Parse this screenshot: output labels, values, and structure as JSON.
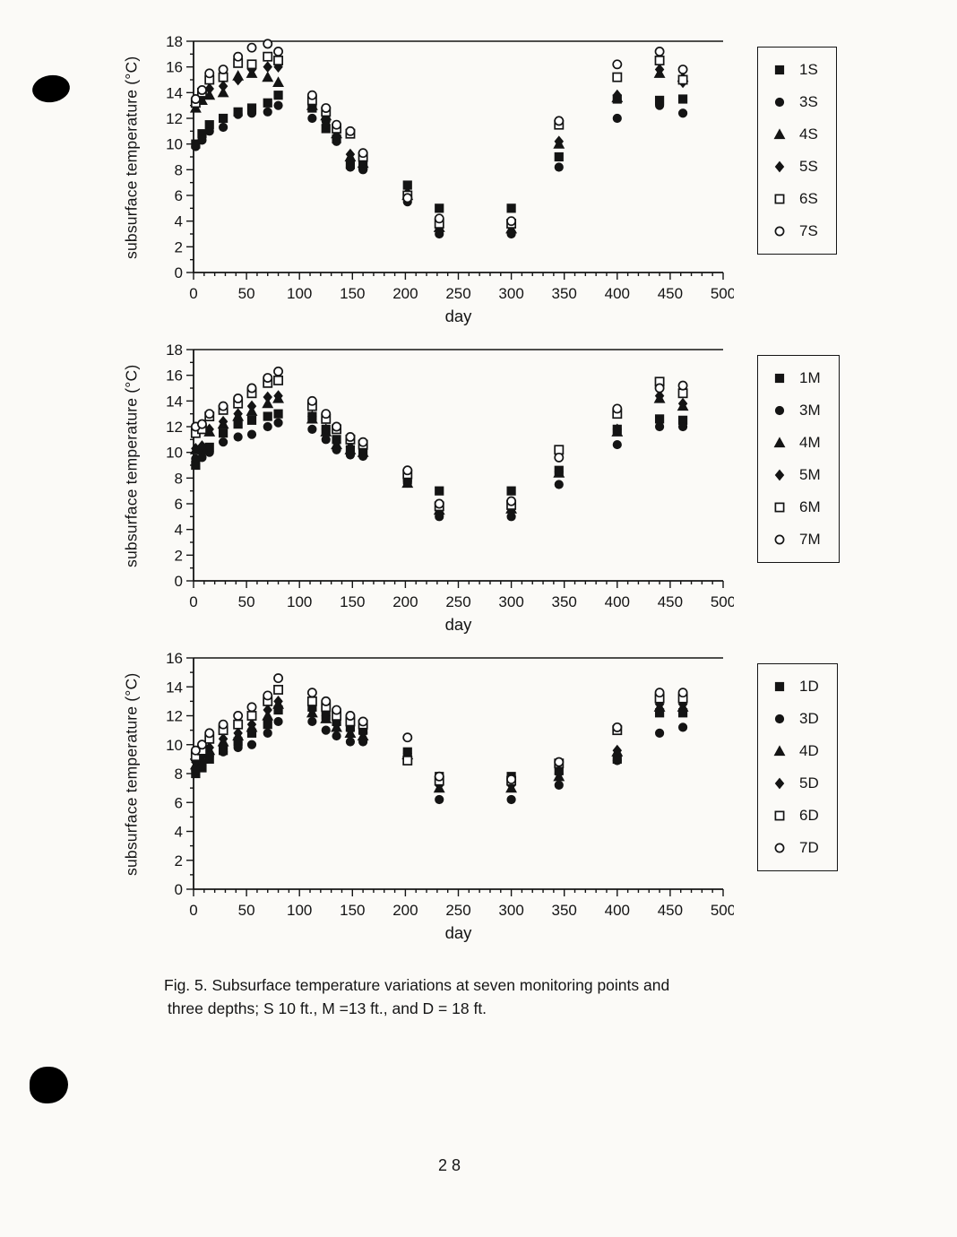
{
  "page_number": "28",
  "caption": {
    "line1": "Fig. 5.  Subsurface temperature variations at seven monitoring points and",
    "line2": "three depths; S 10 ft., M =13 ft., and D = 18 ft."
  },
  "colors": {
    "ink": "#141414",
    "paper": "#fbfaf7"
  },
  "chart_data": [
    {
      "type": "scatter",
      "xlabel": "day",
      "ylabel": "subsurface temperature (°C)",
      "xlim": [
        0,
        500
      ],
      "ylim": [
        0,
        18
      ],
      "xticks": [
        0,
        50,
        100,
        150,
        200,
        250,
        300,
        350,
        400,
        450,
        500
      ],
      "yticks": [
        0,
        2,
        4,
        6,
        8,
        10,
        12,
        14,
        16,
        18
      ],
      "x_minor_step": 10,
      "y_minor_step": 1,
      "legend_position": "right",
      "grid": false,
      "x": [
        2,
        8,
        15,
        28,
        42,
        55,
        70,
        80,
        112,
        125,
        135,
        148,
        160,
        202,
        232,
        300,
        345,
        400,
        440,
        462
      ],
      "series": [
        {
          "name": "1S",
          "marker": "filled-square",
          "values": [
            10.0,
            10.8,
            11.5,
            12.0,
            12.5,
            12.8,
            13.2,
            13.8,
            12.8,
            11.2,
            10.4,
            8.4,
            8.3,
            6.8,
            5.0,
            5.0,
            9.0,
            13.5,
            13.4,
            13.5
          ]
        },
        {
          "name": "3S",
          "marker": "filled-circle",
          "values": [
            9.8,
            10.3,
            11.0,
            11.3,
            12.3,
            12.4,
            12.5,
            13.0,
            12.0,
            11.8,
            10.2,
            8.2,
            8.0,
            5.5,
            3.0,
            3.0,
            8.2,
            12.0,
            13.0,
            12.4
          ]
        },
        {
          "name": "4S",
          "marker": "filled-triangle",
          "values": [
            12.8,
            13.4,
            13.8,
            14.0,
            15.3,
            15.5,
            15.2,
            14.8,
            13.0,
            12.2,
            10.8,
            9.0,
            8.5,
            6.0,
            3.5,
            3.4,
            10.0,
            13.6,
            15.5,
            15.2
          ]
        },
        {
          "name": "5S",
          "marker": "filled-diamond",
          "values": [
            13.0,
            13.6,
            14.3,
            14.5,
            15.0,
            15.8,
            16.0,
            16.0,
            13.2,
            11.5,
            10.6,
            9.2,
            8.6,
            6.2,
            3.6,
            3.6,
            10.2,
            13.8,
            15.8,
            14.8
          ]
        },
        {
          "name": "6S",
          "marker": "open-square",
          "values": [
            13.2,
            14.0,
            15.0,
            15.2,
            16.3,
            16.2,
            16.8,
            16.5,
            13.4,
            12.5,
            11.2,
            10.8,
            9.0,
            6.0,
            3.8,
            3.8,
            11.5,
            15.2,
            16.5,
            15.0
          ]
        },
        {
          "name": "7S",
          "marker": "open-circle",
          "values": [
            13.5,
            14.2,
            15.5,
            15.8,
            16.8,
            17.5,
            17.8,
            17.2,
            13.8,
            12.8,
            11.5,
            11.0,
            9.3,
            5.8,
            4.2,
            4.0,
            11.8,
            16.2,
            17.2,
            15.8
          ]
        }
      ]
    },
    {
      "type": "scatter",
      "xlabel": "day",
      "ylabel": "subsurface temperature (°C)",
      "xlim": [
        0,
        500
      ],
      "ylim": [
        0,
        18
      ],
      "xticks": [
        0,
        50,
        100,
        150,
        200,
        250,
        300,
        350,
        400,
        450,
        500
      ],
      "yticks": [
        0,
        2,
        4,
        6,
        8,
        10,
        12,
        14,
        16,
        18
      ],
      "x_minor_step": 10,
      "y_minor_step": 1,
      "legend_position": "right",
      "grid": false,
      "x": [
        2,
        8,
        15,
        28,
        42,
        55,
        70,
        80,
        112,
        125,
        135,
        148,
        160,
        202,
        232,
        300,
        345,
        400,
        440,
        462
      ],
      "series": [
        {
          "name": "1M",
          "marker": "filled-square",
          "values": [
            9.0,
            10.2,
            10.4,
            11.5,
            12.2,
            12.5,
            12.8,
            13.0,
            12.8,
            11.8,
            11.0,
            10.2,
            10.0,
            8.0,
            7.0,
            7.0,
            8.6,
            11.8,
            12.6,
            12.5
          ]
        },
        {
          "name": "3M",
          "marker": "filled-circle",
          "values": [
            9.5,
            9.6,
            10.0,
            10.8,
            11.2,
            11.4,
            12.0,
            12.3,
            11.8,
            11.0,
            10.2,
            9.8,
            9.7,
            7.6,
            5.0,
            5.0,
            7.5,
            10.6,
            12.0,
            12.0
          ]
        },
        {
          "name": "4M",
          "marker": "filled-triangle",
          "values": [
            10.2,
            10.4,
            11.6,
            12.2,
            12.8,
            13.2,
            13.8,
            14.2,
            12.6,
            11.6,
            10.6,
            10.2,
            10.0,
            7.6,
            5.5,
            5.6,
            8.4,
            11.6,
            14.2,
            13.6
          ]
        },
        {
          "name": "5M",
          "marker": "filled-diamond",
          "values": [
            10.3,
            10.5,
            11.8,
            12.4,
            13.0,
            13.6,
            14.3,
            14.4,
            12.8,
            11.8,
            10.8,
            10.4,
            10.2,
            7.8,
            5.6,
            5.7,
            8.5,
            11.8,
            14.4,
            13.8
          ]
        },
        {
          "name": "6M",
          "marker": "open-square",
          "values": [
            11.5,
            11.8,
            12.8,
            13.3,
            13.8,
            14.6,
            15.4,
            15.6,
            13.6,
            12.6,
            11.8,
            11.0,
            10.6,
            8.3,
            5.8,
            5.9,
            10.2,
            13.0,
            15.5,
            14.6
          ]
        },
        {
          "name": "7M",
          "marker": "open-circle",
          "values": [
            12.0,
            12.2,
            13.0,
            13.6,
            14.2,
            15.0,
            15.8,
            16.3,
            14.0,
            13.0,
            12.0,
            11.2,
            10.8,
            8.6,
            6.0,
            6.2,
            9.6,
            13.4,
            15.0,
            15.2
          ]
        }
      ]
    },
    {
      "type": "scatter",
      "xlabel": "day",
      "ylabel": "subsurface temperature (°C)",
      "xlim": [
        0,
        500
      ],
      "ylim": [
        0,
        16
      ],
      "xticks": [
        0,
        50,
        100,
        150,
        200,
        250,
        300,
        350,
        400,
        450,
        500
      ],
      "yticks": [
        0,
        2,
        4,
        6,
        8,
        10,
        12,
        14,
        16
      ],
      "x_minor_step": 10,
      "y_minor_step": 1,
      "legend_position": "right",
      "grid": false,
      "x": [
        2,
        8,
        15,
        28,
        42,
        55,
        70,
        80,
        112,
        125,
        135,
        148,
        160,
        202,
        232,
        300,
        345,
        400,
        440,
        462
      ],
      "series": [
        {
          "name": "1D",
          "marker": "filled-square",
          "values": [
            8.0,
            8.4,
            9.0,
            9.6,
            10.2,
            10.8,
            11.4,
            12.4,
            12.6,
            12.0,
            11.6,
            11.2,
            11.0,
            9.5,
            7.8,
            7.8,
            8.2,
            9.0,
            12.2,
            12.2
          ]
        },
        {
          "name": "3D",
          "marker": "filled-circle",
          "values": [
            8.2,
            8.5,
            9.2,
            9.5,
            9.8,
            10.0,
            10.8,
            11.6,
            11.6,
            11.0,
            10.6,
            10.2,
            10.2,
            9.0,
            6.2,
            6.2,
            7.2,
            8.9,
            10.8,
            11.2
          ]
        },
        {
          "name": "4D",
          "marker": "filled-triangle",
          "values": [
            8.6,
            9.0,
            9.6,
            10.2,
            10.6,
            11.2,
            12.0,
            12.8,
            12.2,
            11.8,
            11.2,
            10.8,
            10.6,
            9.3,
            7.0,
            7.0,
            7.8,
            9.5,
            12.6,
            12.6
          ]
        },
        {
          "name": "5D",
          "marker": "filled-diamond",
          "values": [
            8.8,
            9.2,
            9.8,
            10.4,
            10.8,
            11.4,
            12.4,
            13.0,
            12.4,
            12.0,
            11.4,
            11.0,
            10.8,
            9.4,
            7.2,
            7.2,
            8.0,
            9.6,
            12.8,
            12.8
          ]
        },
        {
          "name": "6D",
          "marker": "open-square",
          "values": [
            9.2,
            9.6,
            10.4,
            11.0,
            11.4,
            12.0,
            13.0,
            13.8,
            13.0,
            12.6,
            12.0,
            11.6,
            11.4,
            8.9,
            7.5,
            7.5,
            8.7,
            11.0,
            13.2,
            13.2
          ]
        },
        {
          "name": "7D",
          "marker": "open-circle",
          "values": [
            9.6,
            10.0,
            10.8,
            11.4,
            12.0,
            12.6,
            13.4,
            14.6,
            13.6,
            13.0,
            12.4,
            12.0,
            11.6,
            10.5,
            7.8,
            7.6,
            8.8,
            11.2,
            13.6,
            13.6
          ]
        }
      ]
    }
  ]
}
